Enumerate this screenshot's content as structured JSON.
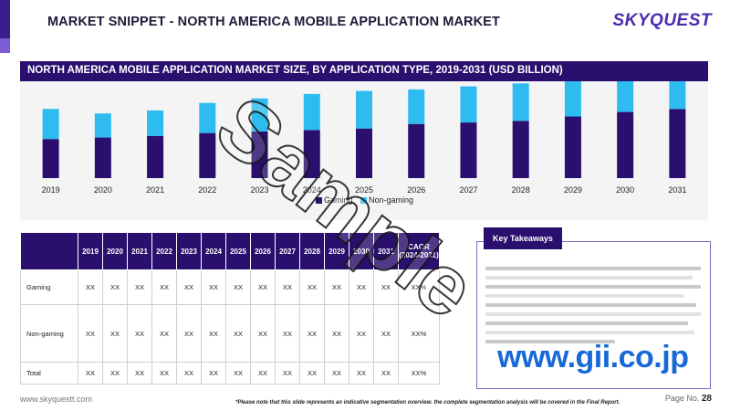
{
  "page": {
    "title": "MARKET SNIPPET - NORTH AMERICA MOBILE APPLICATION MARKET",
    "logo_main": "SKYQUEST",
    "website": "www.skyquestt.com",
    "footnote": "*Please note that this slide represents an indicative segmentation overview. the complete segmentation analysis will be covered in the Final Report.",
    "page_label": "Page No.",
    "page_number": "28",
    "watermark": "Sample",
    "overlay_url": "www.gii.co.jp"
  },
  "chart_header": "NORTH AMERICA MOBILE APPLICATION MARKET SIZE,  BY APPLICATION TYPE, 2019-2031 (USD BILLION)",
  "colors": {
    "gaming": "#2a0f6e",
    "non_gaming": "#2ebcf0",
    "header": "#2a0f6e"
  },
  "chart_data": {
    "type": "bar",
    "stacked": true,
    "categories": [
      "2019",
      "2020",
      "2021",
      "2022",
      "2023",
      "2024",
      "2025",
      "2026",
      "2027",
      "2028",
      "2029",
      "2030",
      "2031"
    ],
    "series": [
      {
        "name": "Gaming",
        "values": [
          26,
          27,
          28,
          30,
          31,
          32,
          33,
          36,
          37,
          38,
          41,
          44,
          46
        ]
      },
      {
        "name": "Non-gaming",
        "values": [
          20,
          16,
          17,
          20,
          22,
          24,
          25,
          23,
          24,
          25,
          27,
          33,
          34
        ]
      }
    ],
    "ylim": [
      0,
      95
    ],
    "title": "",
    "xlabel": "",
    "ylabel": "",
    "legend_position": "bottom-center",
    "grid": false
  },
  "legend": {
    "gaming": "Gaming",
    "non_gaming": "Non-gaming"
  },
  "table": {
    "headers": [
      "",
      "2019",
      "2020",
      "2021",
      "2022",
      "2023",
      "2024",
      "2025",
      "2026",
      "2027",
      "2028",
      "2029",
      "2030",
      "2031",
      "CAGR (2024-2031)"
    ],
    "rows": [
      {
        "label": "Gaming",
        "cells": [
          "XX",
          "XX",
          "XX",
          "XX",
          "XX",
          "XX",
          "XX",
          "XX",
          "XX",
          "XX",
          "XX",
          "XX",
          "XX",
          "XX%"
        ]
      },
      {
        "label": "Non-gaming",
        "cells": [
          "XX",
          "XX",
          "XX",
          "XX",
          "XX",
          "XX",
          "XX",
          "XX",
          "XX",
          "XX",
          "XX",
          "XX",
          "XX",
          "XX%"
        ]
      },
      {
        "label": "Total",
        "cells": [
          "XX",
          "XX",
          "XX",
          "XX",
          "XX",
          "XX",
          "XX",
          "XX",
          "XX",
          "XX",
          "XX",
          "XX",
          "XX",
          "XX%"
        ]
      }
    ]
  },
  "key_takeaways": {
    "title": "Key Takeaways"
  }
}
